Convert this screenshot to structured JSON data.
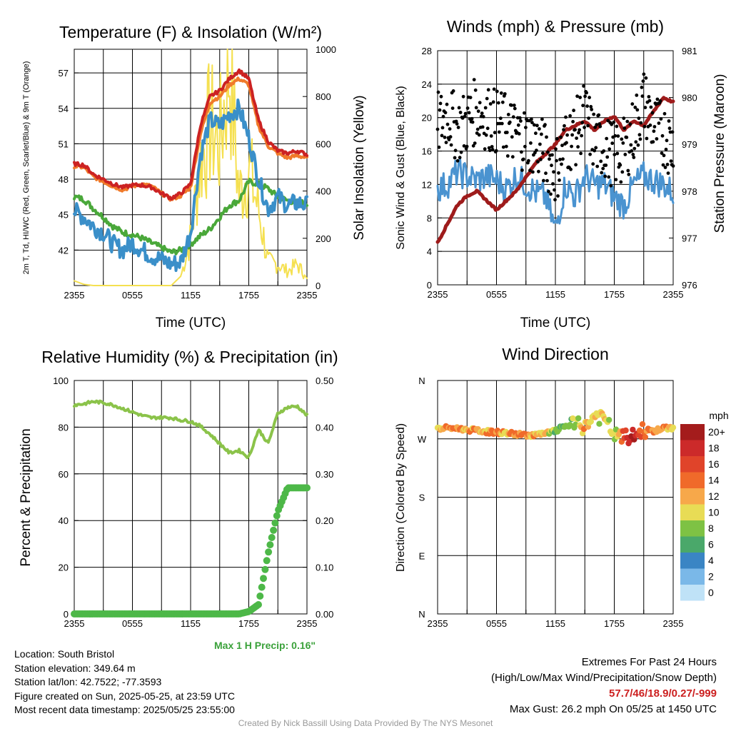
{
  "info": {
    "location": "Location: South Bristol",
    "elevation": "Station elevation: 349.64 m",
    "latlon": "Station lat/lon: 42.7522; -77.3593",
    "created": "Figure created on Sun, 2025-05-25, at 23:59 UTC",
    "recent": "Most recent data timestamp: 2025/05/25 23:55:00"
  },
  "extremes": {
    "title": "Extremes For Past 24 Hours",
    "subtitle": "(High/Low/Max Wind/Precipitation/Snow Depth)",
    "values": "57.7/46/18.9/0.27/-999",
    "gust": "Max Gust: 26.2 mph On 05/25 at 1450 UTC"
  },
  "max_precip": "Max 1 H Precip: 0.16\"",
  "credit": "Created By Nick Bassill Using Data Provided By The NYS Mesonet",
  "colors": {
    "temp": "#cc2222",
    "hiwc": "#f07a2a",
    "dew": "#3a8fc9",
    "td_green": "#4aa83a",
    "solar": "#f5e050",
    "pressure": "#9e1b1b",
    "wind": "#4a93d0",
    "gust": "#000000",
    "rh": "#8bc34a",
    "precip": "#4db848"
  },
  "chart_data": [
    {
      "type": "line",
      "title": "Temperature (F) & Insolation (W/m²)",
      "xlabel": "Time (UTC)",
      "ylabel": "2m T, Td, HI/WC (Red, Green, Scarlet/Blue) & 9m T (Orange)",
      "ylabel2": "Solar Insolation (Yellow)",
      "x_ticks": [
        "2355",
        "0555",
        "1155",
        "1755",
        "2355"
      ],
      "y_ticks": [
        42,
        45,
        48,
        51,
        54,
        57
      ],
      "y2_ticks": [
        0,
        200,
        400,
        600,
        800,
        1000
      ],
      "ylim": [
        39,
        59
      ],
      "y2lim": [
        0,
        1000
      ],
      "x_hours": [
        0,
        1,
        2,
        3,
        4,
        5,
        6,
        7,
        8,
        9,
        10,
        11,
        12,
        13,
        14,
        15,
        16,
        17,
        18,
        19,
        20,
        21,
        22,
        23,
        24
      ],
      "series": [
        {
          "key": "t2m",
          "values": [
            49.3,
            49.2,
            48.4,
            48.0,
            47.6,
            47.3,
            47.5,
            47.5,
            47.3,
            46.8,
            46.4,
            46.8,
            47.6,
            52.5,
            55.0,
            55.5,
            56.5,
            57.2,
            56.5,
            53.0,
            51.2,
            50.4,
            50.2,
            50.4,
            50.1
          ]
        },
        {
          "key": "t9m",
          "values": [
            49.1,
            49.0,
            48.2,
            47.8,
            47.4,
            47.1,
            47.4,
            47.6,
            47.4,
            46.8,
            46.3,
            46.6,
            47.3,
            51.8,
            54.5,
            55.0,
            56.0,
            56.5,
            56.0,
            52.5,
            50.8,
            50.2,
            49.8,
            50.0,
            49.8
          ]
        },
        {
          "key": "dew",
          "values": [
            45.3,
            44.8,
            44.0,
            43.5,
            42.5,
            42.0,
            42.6,
            42.0,
            41.5,
            41.2,
            40.8,
            41.0,
            43.5,
            50.0,
            53.0,
            52.5,
            53.5,
            54.0,
            51.5,
            48.0,
            45.5,
            46.5,
            45.8,
            46.0,
            45.8
          ]
        },
        {
          "key": "td",
          "values": [
            46.5,
            46.3,
            45.5,
            44.8,
            44.0,
            43.5,
            43.3,
            43.0,
            42.6,
            42.2,
            41.8,
            42.0,
            42.5,
            43.2,
            43.8,
            44.8,
            45.8,
            46.2,
            47.8,
            47.6,
            47.2,
            46.5,
            46.2,
            46.0,
            46.0
          ]
        },
        {
          "key": "solar",
          "values": [
            20,
            5,
            0,
            0,
            0,
            0,
            0,
            0,
            0,
            0,
            0,
            40,
            200,
            520,
            680,
            600,
            950,
            380,
            500,
            320,
            100,
            90,
            60,
            90,
            30
          ]
        }
      ]
    },
    {
      "type": "line",
      "title": "Winds (mph) & Pressure (mb)",
      "xlabel": "Time (UTC)",
      "ylabel": "Sonic Wind & Gust (Blue, Black)",
      "ylabel2": "Station Pressure (Maroon)",
      "x_ticks": [
        "2355",
        "0555",
        "1155",
        "1755",
        "2355"
      ],
      "y_ticks": [
        0,
        4,
        8,
        12,
        16,
        20,
        24,
        28
      ],
      "y2_ticks": [
        976,
        977,
        978,
        979,
        980,
        981
      ],
      "ylim": [
        0,
        28
      ],
      "y2lim": [
        976,
        981
      ],
      "x_hours": [
        0,
        1,
        2,
        3,
        4,
        5,
        6,
        7,
        8,
        9,
        10,
        11,
        12,
        13,
        14,
        15,
        16,
        17,
        18,
        19,
        20,
        21,
        22,
        23,
        24
      ],
      "series": [
        {
          "key": "wind",
          "values": [
            11.5,
            12.0,
            13.5,
            13.0,
            12.5,
            13.0,
            12.5,
            11.5,
            13.0,
            12.0,
            11.0,
            10.5,
            6.5,
            12.0,
            10.5,
            13.0,
            12.0,
            12.0,
            10.5,
            9.5,
            12.0,
            13.0,
            12.5,
            12.0,
            11.0
          ]
        },
        {
          "key": "gust",
          "values": [
            19.0,
            20.5,
            18.5,
            19.5,
            21.0,
            20.0,
            19.5,
            19.0,
            18.0,
            17.5,
            17.0,
            15.5,
            13.5,
            17.0,
            18.0,
            20.5,
            17.0,
            16.5,
            15.5,
            16.0,
            18.5,
            22.0,
            19.0,
            18.0,
            16.5
          ]
        },
        {
          "key": "pressure",
          "values": [
            976.9,
            977.3,
            977.7,
            977.9,
            978.0,
            977.8,
            977.6,
            977.8,
            978.0,
            978.3,
            978.6,
            978.8,
            979.0,
            979.3,
            979.4,
            979.5,
            979.3,
            979.5,
            979.6,
            979.3,
            979.5,
            979.4,
            979.7,
            980.0,
            979.9
          ]
        }
      ]
    },
    {
      "type": "line",
      "title": "Relative Humidity (%) & Precipitation (in)",
      "xlabel": "",
      "ylabel": "Percent & Precipitation",
      "x_ticks": [
        "2355",
        "0555",
        "1155",
        "1755",
        "2355"
      ],
      "y_ticks": [
        0,
        20,
        40,
        60,
        80,
        100
      ],
      "y2_ticks": [
        "0.00",
        "0.10",
        "0.20",
        "0.30",
        "0.40",
        "0.50"
      ],
      "ylim": [
        0,
        100
      ],
      "y2lim": [
        0,
        0.5
      ],
      "x_hours": [
        0,
        1,
        2,
        3,
        4,
        5,
        6,
        7,
        8,
        9,
        10,
        11,
        12,
        13,
        14,
        15,
        16,
        17,
        18,
        19,
        20,
        21,
        22,
        23,
        24
      ],
      "series": [
        {
          "key": "rh",
          "values": [
            89.5,
            90.0,
            91.0,
            90.5,
            89.5,
            88.0,
            86.5,
            85.0,
            84.0,
            84.2,
            84.0,
            83.0,
            82.5,
            80.5,
            77.0,
            73.0,
            69.0,
            70.0,
            67.0,
            79.0,
            73.0,
            86.0,
            88.5,
            89.0,
            85.0
          ]
        },
        {
          "key": "precip",
          "values": [
            0,
            0,
            0,
            0,
            0,
            0,
            0,
            0,
            0,
            0,
            0,
            0,
            0,
            0,
            0,
            0,
            0,
            0,
            0.005,
            0.02,
            0.13,
            0.22,
            0.27,
            0.27,
            0.27
          ]
        }
      ]
    },
    {
      "type": "scatter",
      "title": "Wind Direction",
      "xlabel": "",
      "ylabel": "Direction (Colored By Speed)",
      "x_ticks": [
        "2355",
        "0555",
        "1155",
        "1755",
        "2355"
      ],
      "y_ticks": [
        "N",
        "E",
        "S",
        "W",
        "N"
      ],
      "ylim": [
        0,
        360
      ],
      "legend_title": "mph",
      "legend_labels": [
        "20+",
        "18",
        "16",
        "14",
        "12",
        "10",
        "8",
        "6",
        "4",
        "2",
        "0"
      ],
      "legend_colors": [
        "#a41c1c",
        "#cc2a2a",
        "#e0442a",
        "#f06a2a",
        "#f7a84a",
        "#e8dc55",
        "#7ec244",
        "#4aa86a",
        "#3a85c4",
        "#7ab8e8",
        "#bfe2f7"
      ],
      "x_hours": [
        0,
        1,
        2,
        3,
        4,
        5,
        6,
        7,
        8,
        9,
        10,
        11,
        12,
        13,
        14,
        15,
        16,
        17,
        18,
        19,
        20,
        21,
        22,
        23,
        24
      ],
      "directions": [
        285,
        287,
        286,
        284,
        283,
        281,
        280,
        279,
        277,
        276,
        276,
        278,
        282,
        290,
        292,
        288,
        306,
        300,
        276,
        272,
        274,
        284,
        282,
        286,
        287
      ],
      "speeds": [
        11,
        12,
        13,
        12,
        13,
        12,
        13,
        12,
        14,
        13,
        12,
        11,
        8,
        6,
        9,
        12,
        10,
        11,
        9,
        16,
        18,
        13,
        14,
        12,
        11
      ]
    }
  ]
}
